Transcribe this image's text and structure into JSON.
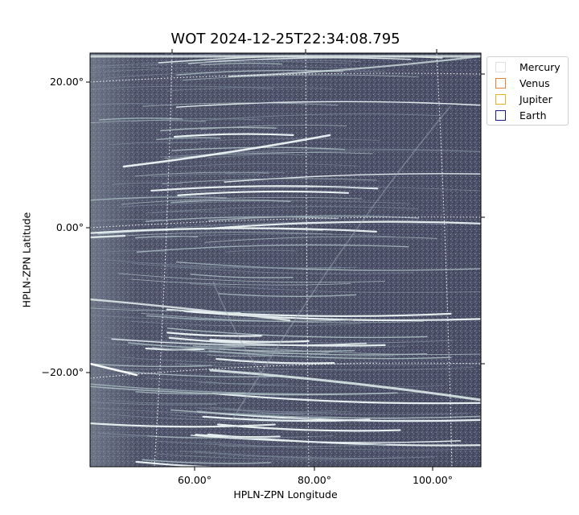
{
  "chart_data": {
    "type": "image",
    "title": "WOT 2024-12-25T22:34:08.795",
    "xlabel": "HPLN-ZPN Longitude",
    "ylabel": "HPLN-ZPN Latitude",
    "x_ticks": [
      "60.00°",
      "80.00°",
      "100.00°"
    ],
    "y_ticks": [
      "20.00°",
      "0.00°",
      "−20.00°"
    ],
    "grid": true,
    "colormap": "bone",
    "legend_position": "outside-top-right",
    "legend": [
      {
        "name": "Mercury",
        "color": "#e0e0e0"
      },
      {
        "name": "Venus",
        "color": "#e0813a"
      },
      {
        "name": "Jupiter",
        "color": "#e8b421"
      },
      {
        "name": "Earth",
        "color": "#1a1a80"
      }
    ]
  }
}
